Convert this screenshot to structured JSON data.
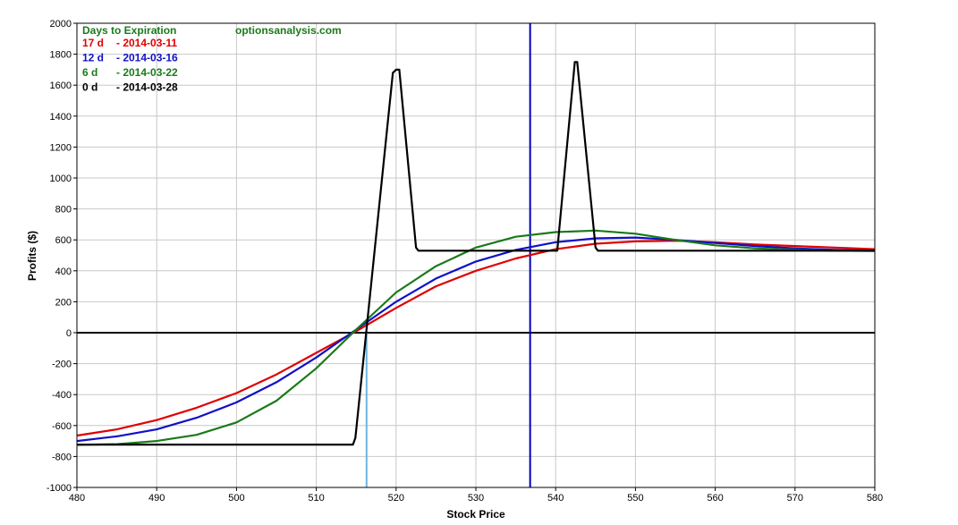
{
  "chart_data": {
    "type": "line",
    "xlabel": "Stock Price",
    "ylabel": "Profits ($)",
    "xlim": [
      480,
      580
    ],
    "ylim": [
      -1000,
      2000
    ],
    "xticks": [
      480,
      490,
      500,
      510,
      520,
      530,
      540,
      550,
      560,
      570,
      580
    ],
    "yticks": [
      -1000,
      -800,
      -600,
      -400,
      -200,
      0,
      200,
      400,
      600,
      800,
      1000,
      1200,
      1400,
      1600,
      1800,
      2000
    ],
    "grid": true,
    "legend": {
      "title": "Days to Expiration",
      "title_color": "#1a7a1a",
      "source": "optionsanalysis.com",
      "source_color": "#1a7a1a",
      "entries": [
        {
          "days": "17 d",
          "date": "- 2014-03-11",
          "color": "#e00000"
        },
        {
          "days": "12 d",
          "date": "- 2014-03-16",
          "color": "#1010c8"
        },
        {
          "days": "6 d",
          "date": "- 2014-03-22",
          "color": "#1a7a1a"
        },
        {
          "days": "0 d",
          "date": "- 2014-03-28",
          "color": "#000000"
        }
      ]
    },
    "vlines": [
      {
        "x": 536.8,
        "color": "#0000c0"
      },
      {
        "x": 516.3,
        "color": "#6fb5e0",
        "y_to": 0
      }
    ],
    "hlines": [
      {
        "y": 0,
        "color": "#000000"
      }
    ],
    "series": [
      {
        "color": "#e00000",
        "x": [
          480,
          485,
          490,
          495,
          500,
          505,
          510,
          515,
          520,
          525,
          530,
          535,
          540,
          545,
          550,
          555,
          560,
          565,
          570,
          575,
          580
        ],
        "y": [
          -665,
          -625,
          -565,
          -485,
          -390,
          -270,
          -130,
          10,
          160,
          300,
          400,
          480,
          540,
          575,
          590,
          595,
          585,
          570,
          560,
          550,
          540
        ]
      },
      {
        "color": "#1010c8",
        "x": [
          480,
          485,
          490,
          495,
          500,
          505,
          510,
          515,
          520,
          525,
          530,
          535,
          540,
          545,
          550,
          555,
          560,
          565,
          570,
          575,
          580
        ],
        "y": [
          -700,
          -670,
          -625,
          -550,
          -450,
          -320,
          -160,
          20,
          200,
          350,
          460,
          535,
          585,
          610,
          615,
          600,
          580,
          560,
          545,
          535,
          530
        ]
      },
      {
        "color": "#1a7a1a",
        "x": [
          480,
          485,
          490,
          495,
          500,
          505,
          510,
          515,
          520,
          525,
          530,
          535,
          540,
          545,
          550,
          555,
          560,
          565,
          570,
          575,
          580
        ],
        "y": [
          -725,
          -720,
          -700,
          -660,
          -580,
          -440,
          -230,
          20,
          260,
          430,
          550,
          620,
          650,
          660,
          640,
          600,
          565,
          545,
          535,
          530,
          528
        ]
      },
      {
        "color": "#000000",
        "x": [
          480,
          514.6,
          514.9,
          519.6,
          520.0,
          520.4,
          522.5,
          522.8,
          540.2,
          542.4,
          542.7,
          545.0,
          545.3,
          580
        ],
        "y": [
          -723,
          -723,
          -680,
          1680,
          1700,
          1700,
          550,
          530,
          530,
          1750,
          1750,
          550,
          530,
          530
        ]
      }
    ]
  }
}
